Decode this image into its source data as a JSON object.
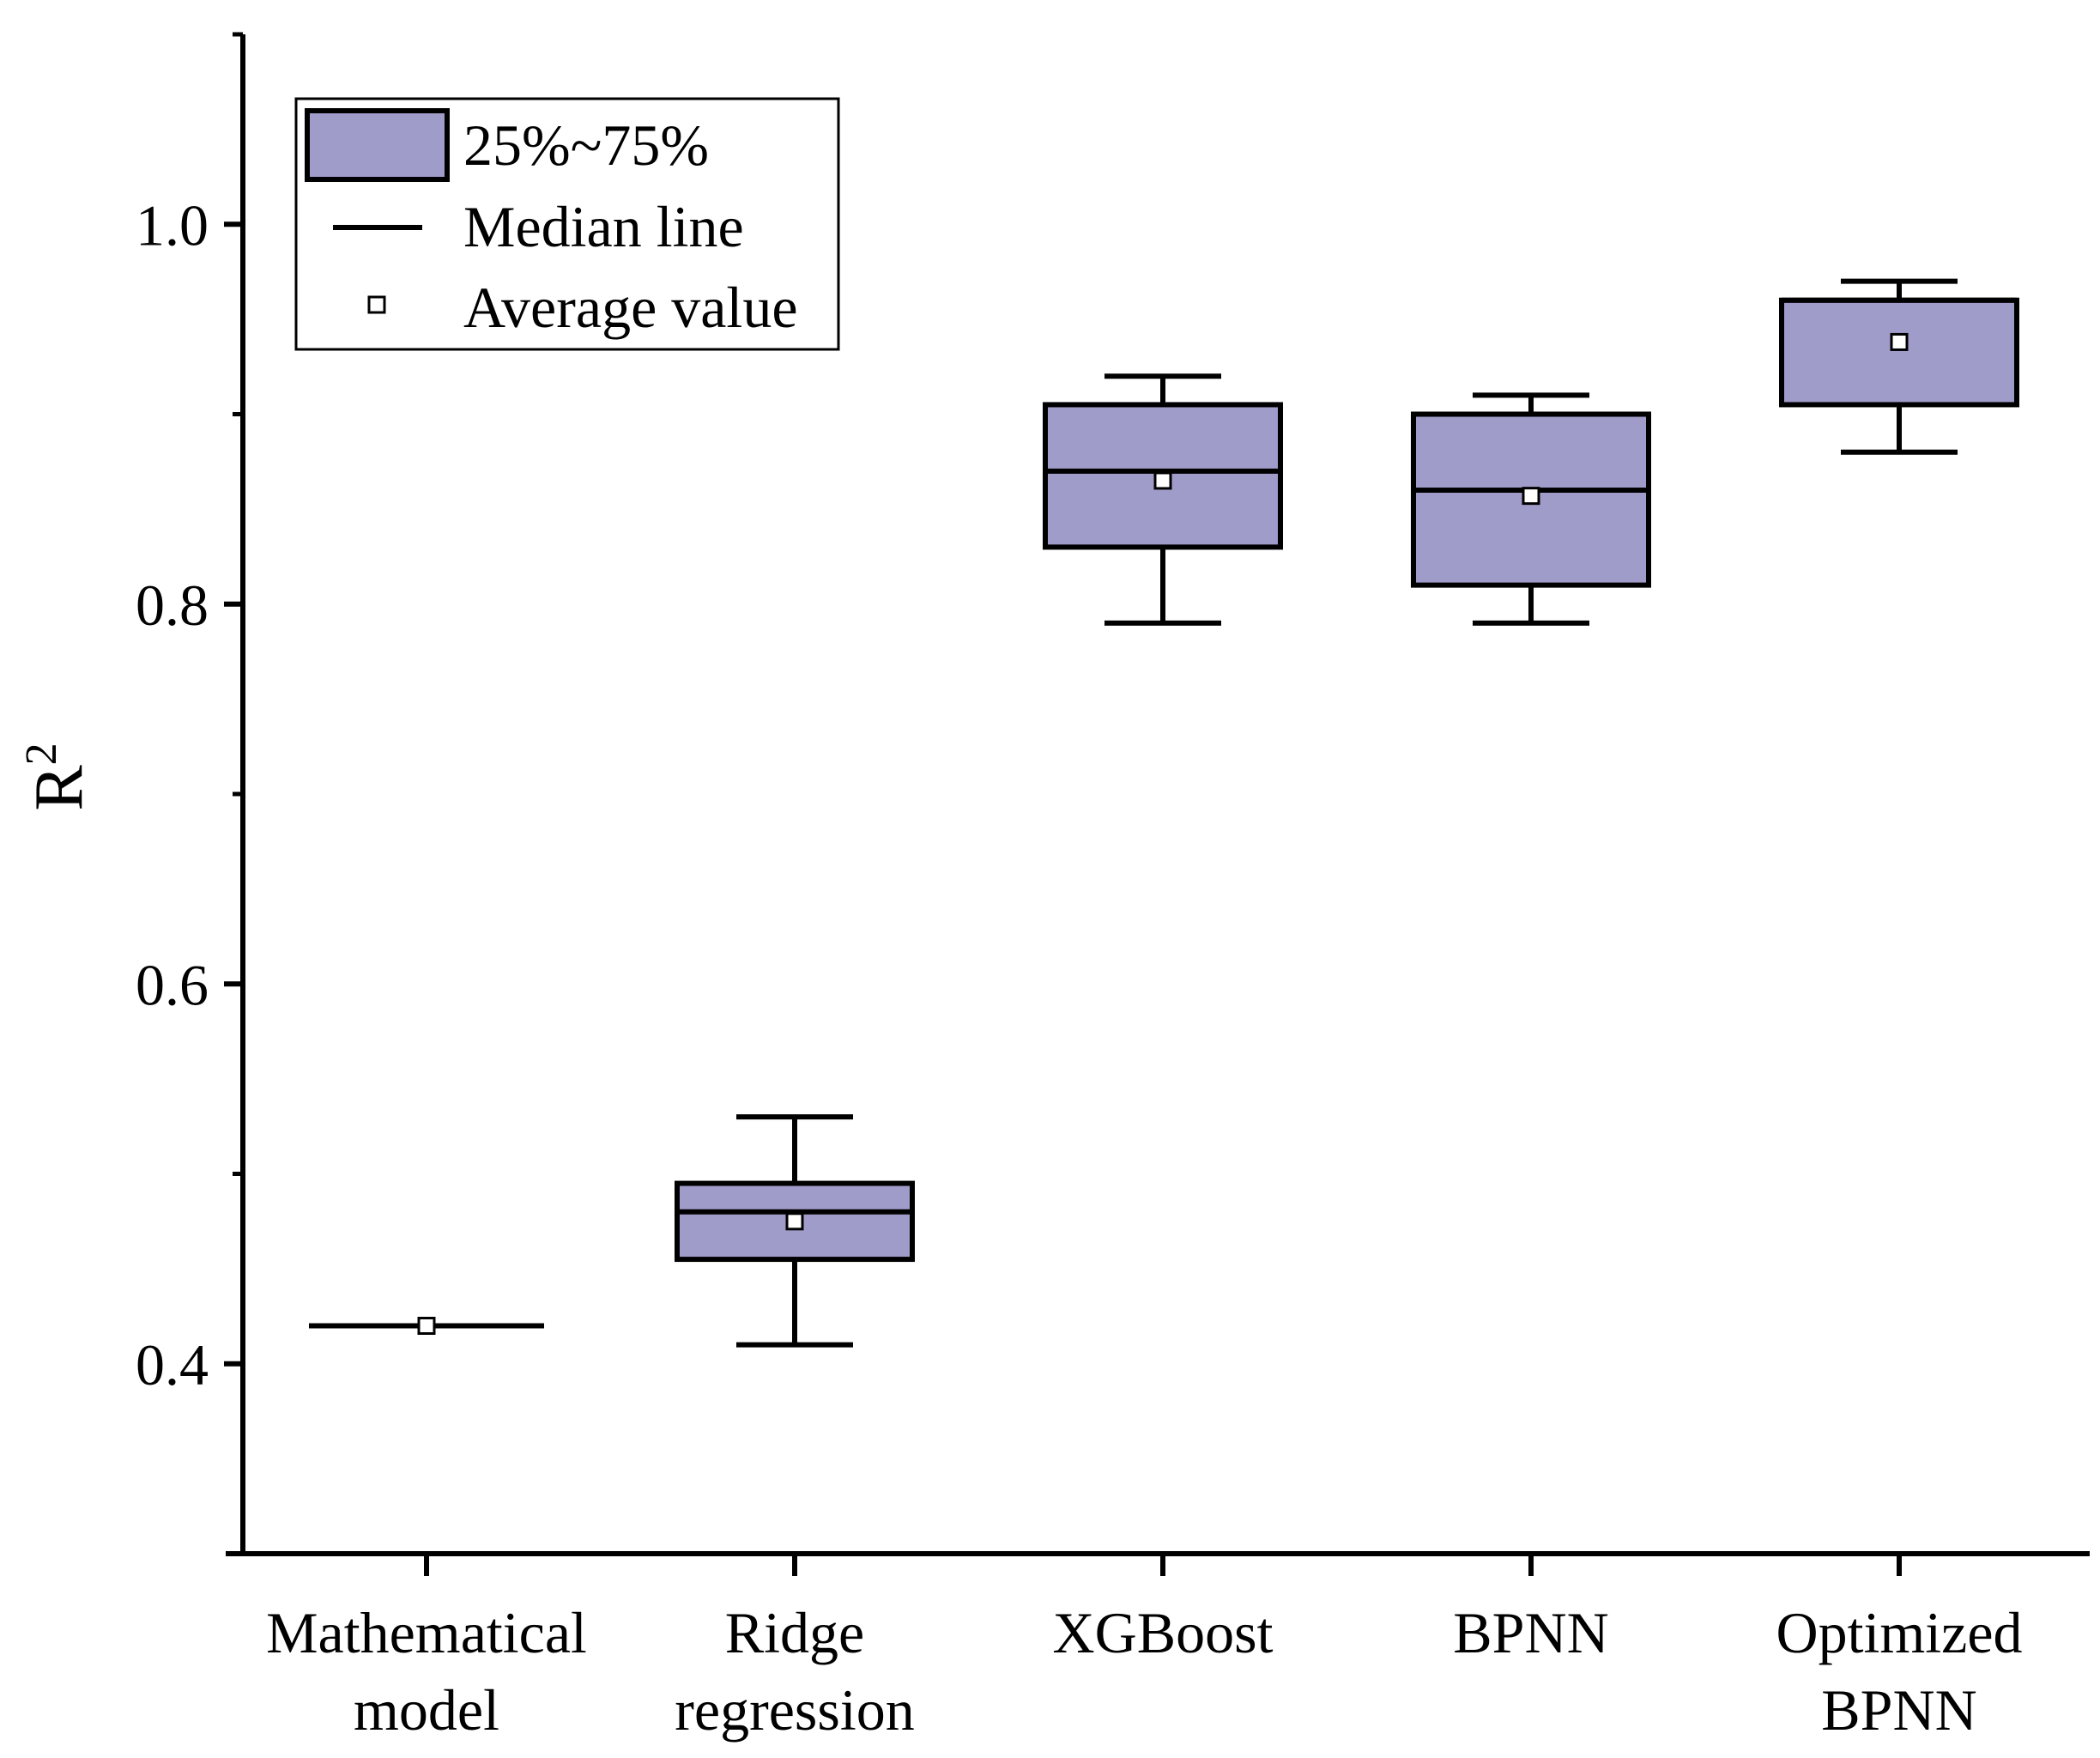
{
  "chart_data": {
    "type": "box",
    "title": "",
    "xlabel": "",
    "ylabel": "R",
    "ylabel_superscript": "2",
    "ylim": [
      0.3,
      1.1
    ],
    "yticks": [
      0.4,
      0.6,
      0.8,
      1.0
    ],
    "ytick_labels": [
      "0.4",
      "0.6",
      "0.8",
      "1.0"
    ],
    "yminor_ticks": [
      0.3,
      0.5,
      0.7,
      0.9
    ],
    "categories": [
      [
        "Mathematical",
        "model"
      ],
      [
        "Ridge",
        "regression"
      ],
      [
        "XGBoost"
      ],
      [
        "BPNN"
      ],
      [
        "Optimized",
        "BPNN"
      ]
    ],
    "boxes": [
      {
        "name": "Mathematical model",
        "whisker_low": 0.42,
        "q1": 0.42,
        "median": 0.42,
        "q3": 0.42,
        "whisker_high": 0.42,
        "mean": 0.42
      },
      {
        "name": "Ridge regression",
        "whisker_low": 0.41,
        "q1": 0.455,
        "median": 0.48,
        "q3": 0.495,
        "whisker_high": 0.53,
        "mean": 0.475
      },
      {
        "name": "XGBoost",
        "whisker_low": 0.79,
        "q1": 0.83,
        "median": 0.87,
        "q3": 0.905,
        "whisker_high": 0.92,
        "mean": 0.865
      },
      {
        "name": "BPNN",
        "whisker_low": 0.79,
        "q1": 0.81,
        "median": 0.86,
        "q3": 0.9,
        "whisker_high": 0.91,
        "mean": 0.857
      },
      {
        "name": "Optimized BPNN",
        "whisker_low": 0.88,
        "q1": 0.905,
        "median": 0.96,
        "q3": 0.96,
        "whisker_high": 0.97,
        "mean": 0.938
      }
    ],
    "legend": {
      "position": "top-left",
      "entries": [
        "25%~75%",
        "Median line",
        "Average value"
      ]
    },
    "colors": {
      "box_fill": "#a09cca",
      "stroke": "#000000"
    }
  }
}
